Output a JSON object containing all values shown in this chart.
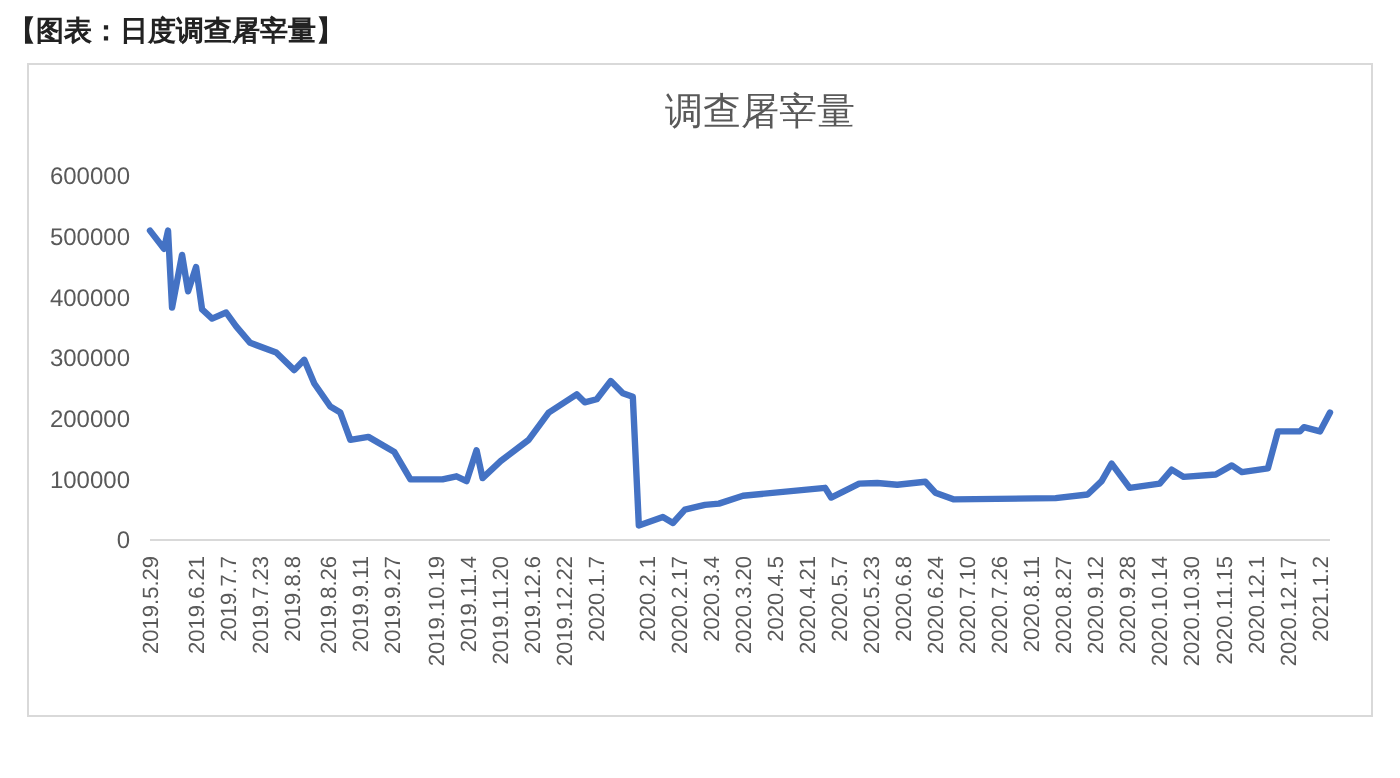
{
  "chart_data": {
    "type": "line",
    "title": "调查屠宰量",
    "annotations": [
      "【图表：日度调查屠宰量】"
    ],
    "xlim": [
      "2019-05-29",
      "2021-01-07"
    ],
    "xticks": [
      {
        "value": "2019-05-29",
        "label": "2019.5.29"
      },
      {
        "value": "2019-06-21",
        "label": "2019.6.21"
      },
      {
        "value": "2019-07-07",
        "label": "2019.7.7"
      },
      {
        "value": "2019-07-23",
        "label": "2019.7.23"
      },
      {
        "value": "2019-08-08",
        "label": "2019.8.8"
      },
      {
        "value": "2019-08-26",
        "label": "2019.8.26"
      },
      {
        "value": "2019-09-11",
        "label": "2019.9.11"
      },
      {
        "value": "2019-09-27",
        "label": "2019.9.27"
      },
      {
        "value": "2019-10-19",
        "label": "2019.10.19"
      },
      {
        "value": "2019-11-04",
        "label": "2019.11.4"
      },
      {
        "value": "2019-11-20",
        "label": "2019.11.20"
      },
      {
        "value": "2019-12-06",
        "label": "2019.12.6"
      },
      {
        "value": "2019-12-22",
        "label": "2019.12.22"
      },
      {
        "value": "2020-01-07",
        "label": "2020.1.7"
      },
      {
        "value": "2020-02-01",
        "label": "2020.2.1"
      },
      {
        "value": "2020-02-17",
        "label": "2020.2.17"
      },
      {
        "value": "2020-03-04",
        "label": "2020.3.4"
      },
      {
        "value": "2020-03-20",
        "label": "2020.3.20"
      },
      {
        "value": "2020-04-05",
        "label": "2020.4.5"
      },
      {
        "value": "2020-04-21",
        "label": "2020.4.21"
      },
      {
        "value": "2020-05-07",
        "label": "2020.5.7"
      },
      {
        "value": "2020-05-23",
        "label": "2020.5.23"
      },
      {
        "value": "2020-06-08",
        "label": "2020.6.8"
      },
      {
        "value": "2020-06-24",
        "label": "2020.6.24"
      },
      {
        "value": "2020-07-10",
        "label": "2020.7.10"
      },
      {
        "value": "2020-07-26",
        "label": "2020.7.26"
      },
      {
        "value": "2020-08-11",
        "label": "2020.8.11"
      },
      {
        "value": "2020-08-27",
        "label": "2020.8.27"
      },
      {
        "value": "2020-09-12",
        "label": "2020.9.12"
      },
      {
        "value": "2020-09-28",
        "label": "2020.9.28"
      },
      {
        "value": "2020-10-14",
        "label": "2020.10.14"
      },
      {
        "value": "2020-10-30",
        "label": "2020.10.30"
      },
      {
        "value": "2020-11-15",
        "label": "2020.11.15"
      },
      {
        "value": "2020-12-01",
        "label": "2020.12.1"
      },
      {
        "value": "2020-12-17",
        "label": "2020.12.17"
      },
      {
        "value": "2021-01-02",
        "label": "2021.1.2"
      }
    ],
    "ylim": [
      0,
      600000
    ],
    "yticks": [
      0,
      100000,
      200000,
      300000,
      400000,
      500000,
      600000
    ],
    "x": [
      "2019-05-29",
      "2019-06-05",
      "2019-06-07",
      "2019-06-09",
      "2019-06-14",
      "2019-06-17",
      "2019-06-21",
      "2019-06-24",
      "2019-06-29",
      "2019-07-06",
      "2019-07-11",
      "2019-07-18",
      "2019-07-31",
      "2019-08-09",
      "2019-08-14",
      "2019-08-19",
      "2019-08-27",
      "2019-09-01",
      "2019-09-06",
      "2019-09-15",
      "2019-09-28",
      "2019-10-06",
      "2019-10-22",
      "2019-10-29",
      "2019-11-03",
      "2019-11-08",
      "2019-11-11",
      "2019-11-20",
      "2019-12-04",
      "2019-12-14",
      "2019-12-28",
      "2020-01-01",
      "2020-01-07",
      "2020-01-14",
      "2020-01-20",
      "2020-01-25",
      "2020-01-28",
      "2020-02-09",
      "2020-02-14",
      "2020-02-20",
      "2020-03-01",
      "2020-03-08",
      "2020-03-20",
      "2020-04-30",
      "2020-05-03",
      "2020-05-17",
      "2020-05-26",
      "2020-06-05",
      "2020-06-19",
      "2020-06-24",
      "2020-07-03",
      "2020-08-23",
      "2020-09-08",
      "2020-09-15",
      "2020-09-20",
      "2020-09-29",
      "2020-10-14",
      "2020-10-20",
      "2020-10-26",
      "2020-11-11",
      "2020-11-19",
      "2020-11-24",
      "2020-12-07",
      "2020-12-12",
      "2020-12-23",
      "2020-12-25",
      "2021-01-02",
      "2021-01-07"
    ],
    "series": [
      {
        "color": "#4472c4",
        "values": [
          510000,
          480000,
          510000,
          383000,
          470000,
          410000,
          450000,
          380000,
          365000,
          375000,
          352000,
          325000,
          309000,
          280000,
          297000,
          258000,
          220000,
          210000,
          165000,
          170000,
          145000,
          100000,
          100000,
          105000,
          97000,
          148000,
          102000,
          130000,
          165000,
          210000,
          240000,
          227000,
          232000,
          262000,
          242000,
          236000,
          24000,
          38000,
          28000,
          50000,
          58000,
          60000,
          73000,
          86000,
          70000,
          93000,
          94000,
          91000,
          96000,
          78000,
          67000,
          69000,
          75000,
          97000,
          126000,
          86000,
          93000,
          116000,
          104000,
          108000,
          123000,
          112000,
          118000,
          179000,
          179000,
          186000,
          179000,
          210000
        ]
      }
    ]
  }
}
